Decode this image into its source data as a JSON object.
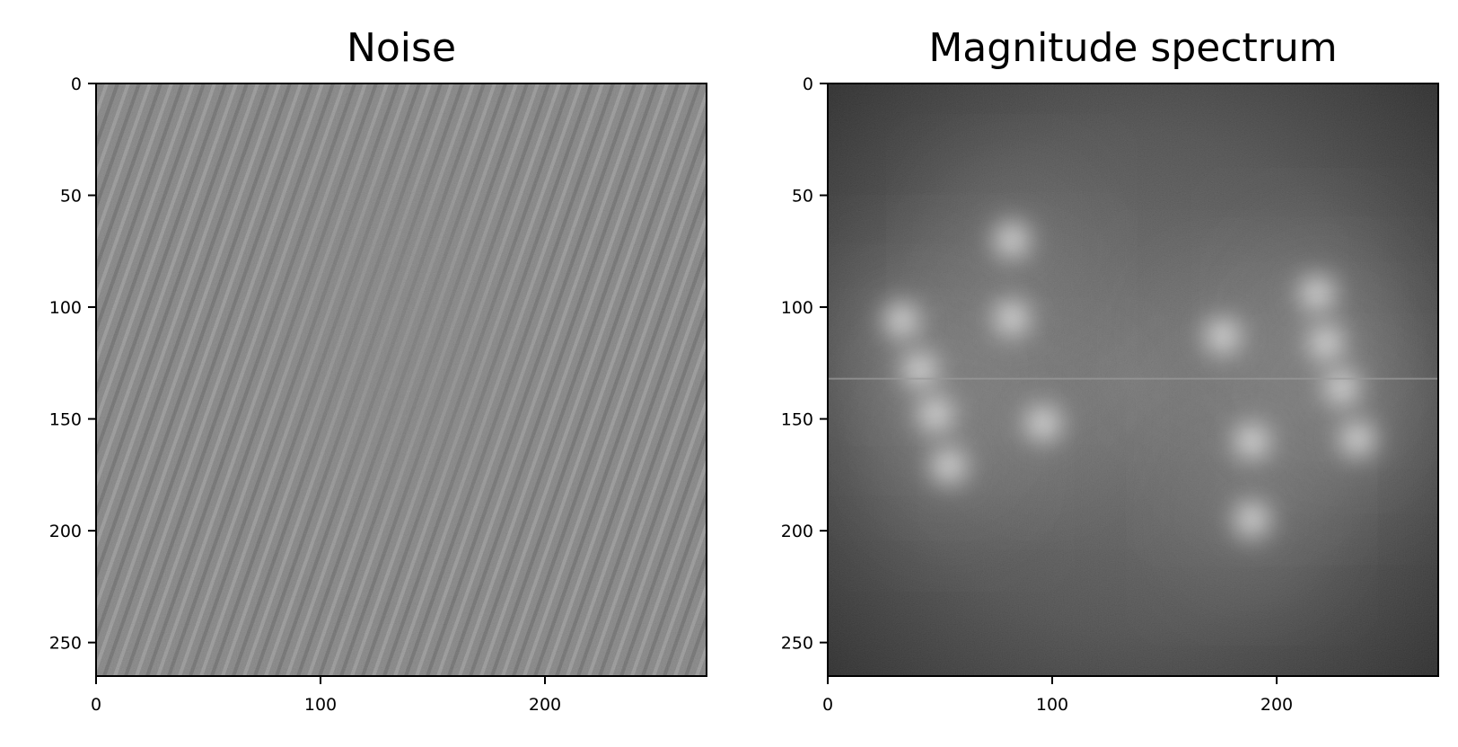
{
  "chart_data": [
    {
      "type": "heatmap",
      "title": "Noise",
      "xlabel": "",
      "ylabel": "",
      "colormap": "gray",
      "xlim": [
        0,
        272
      ],
      "ylim": [
        265,
        0
      ],
      "x_ticks": [
        0,
        100,
        200
      ],
      "y_ticks": [
        0,
        50,
        100,
        150,
        200,
        250
      ],
      "pattern": "diagonal interference fringes, mid-gray mean, strongest at left and upper-right",
      "grid": false
    },
    {
      "type": "heatmap",
      "title": "Magnitude spectrum",
      "xlabel": "",
      "ylabel": "",
      "colormap": "gray",
      "xlim": [
        0,
        272
      ],
      "ylim": [
        265,
        0
      ],
      "x_ticks": [
        0,
        100,
        200
      ],
      "y_ticks": [
        0,
        50,
        100,
        150,
        200,
        250
      ],
      "bright_peaks": [
        {
          "x": 82,
          "y": 70
        },
        {
          "x": 33,
          "y": 106
        },
        {
          "x": 82,
          "y": 105
        },
        {
          "x": 41,
          "y": 128
        },
        {
          "x": 48,
          "y": 148
        },
        {
          "x": 96,
          "y": 152
        },
        {
          "x": 54,
          "y": 171
        },
        {
          "x": 176,
          "y": 113
        },
        {
          "x": 189,
          "y": 160
        },
        {
          "x": 189,
          "y": 195
        },
        {
          "x": 218,
          "y": 94
        },
        {
          "x": 222,
          "y": 116
        },
        {
          "x": 229,
          "y": 136
        },
        {
          "x": 236,
          "y": 159
        }
      ],
      "center_line_y": 132,
      "grid": false
    }
  ]
}
